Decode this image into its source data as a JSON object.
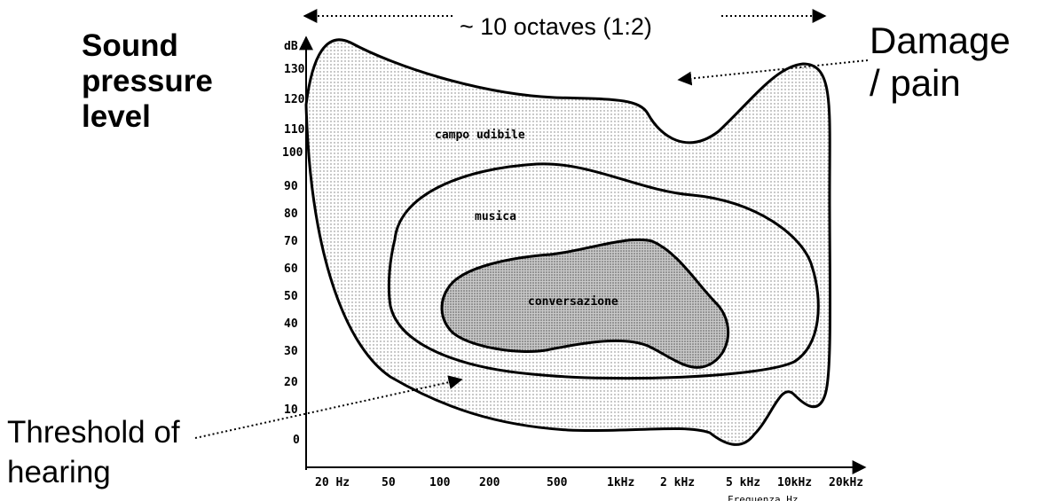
{
  "labels": {
    "y_title": [
      "Sound",
      "pressure",
      "level"
    ],
    "damage": [
      "Damage",
      "/ pain"
    ],
    "threshold": [
      "Threshold of",
      "hearing"
    ],
    "octaves": "~ 10 octaves (1:2)",
    "y_unit": "dB",
    "x_unit": "Frequenza Hz"
  },
  "y_ticks": [
    "0",
    "10",
    "20",
    "30",
    "40",
    "50",
    "60",
    "70",
    "80",
    "90",
    "100",
    "110",
    "120",
    "130"
  ],
  "x_ticks": [
    "20 Hz",
    "50",
    "100",
    "200",
    "500",
    "1kHz",
    "2 kHz",
    "5 kHz",
    "10kHz",
    "20kHz"
  ],
  "regions": {
    "audible": "campo udibile",
    "music": "musica",
    "speech": "conversazione"
  },
  "colors": {
    "line": "#000000",
    "audible_fill": "#e8e8e8",
    "music_fill": "#f1f1f1",
    "speech_fill": "#b9b9b9"
  }
}
